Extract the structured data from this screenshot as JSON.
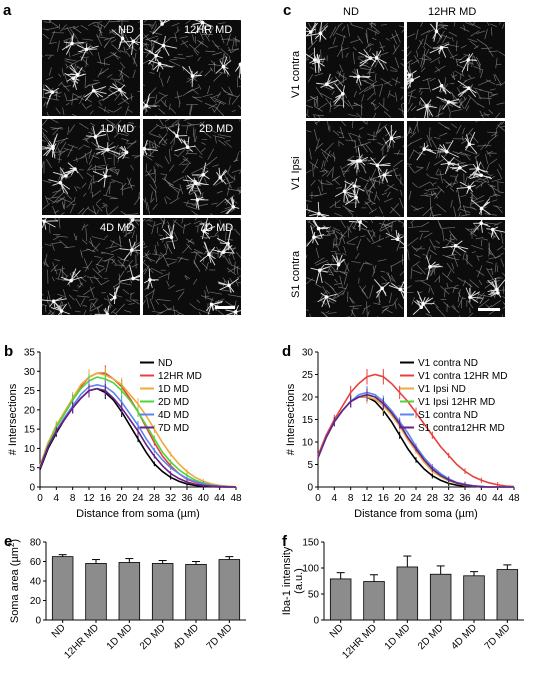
{
  "panel_a": {
    "letter": "a",
    "labels": [
      "ND",
      "12HR MD",
      "1D MD",
      "2D MD",
      "4D MD",
      "7D MD"
    ]
  },
  "panel_c": {
    "letter": "c",
    "col_labels": [
      "ND",
      "12HR MD"
    ],
    "row_labels": [
      "V1 contra",
      "V1 Ipsi",
      "S1 contra"
    ]
  },
  "chart_data": [
    {
      "id": "b",
      "letter": "b",
      "type": "line",
      "xlabel": "Distance from soma (µm)",
      "ylabel": "# Intersections",
      "xlim": [
        0,
        48
      ],
      "ylim": [
        0,
        35
      ],
      "xticks": [
        0,
        4,
        8,
        12,
        16,
        20,
        24,
        28,
        32,
        36,
        40,
        44,
        48
      ],
      "yticks": [
        0,
        5,
        10,
        15,
        20,
        25,
        30,
        35
      ],
      "legend_position": "right",
      "x": [
        0,
        2,
        4,
        6,
        8,
        10,
        12,
        14,
        16,
        18,
        20,
        22,
        24,
        26,
        28,
        30,
        32,
        34,
        36,
        38,
        40,
        42,
        44,
        46,
        48
      ],
      "series": [
        {
          "name": "ND",
          "color": "#000000",
          "values": [
            4.5,
            10,
            14,
            17.5,
            20.5,
            23,
            25,
            25.5,
            24.5,
            22.5,
            19.5,
            16,
            12.5,
            9,
            6,
            4,
            2.5,
            1.5,
            0.8,
            0.4,
            0.2,
            0.1,
            0,
            0,
            0
          ]
        },
        {
          "name": "12HR MD",
          "color": "#e8413c",
          "values": [
            5.5,
            11.5,
            15.5,
            19,
            22.5,
            26,
            28.5,
            29.5,
            29.5,
            28,
            26,
            23,
            19.5,
            15.5,
            11.5,
            8,
            5.5,
            3.5,
            2,
            1.2,
            0.6,
            0.3,
            0.1,
            0,
            0
          ]
        },
        {
          "name": "1D MD",
          "color": "#f2a93b",
          "values": [
            5.5,
            11.5,
            16,
            19.5,
            23,
            26.5,
            28.5,
            29.5,
            29,
            28,
            26.5,
            24,
            21.5,
            18.5,
            15,
            11.5,
            8.5,
            6,
            4,
            2.5,
            1.5,
            0.8,
            0.4,
            0.2,
            0.1
          ]
        },
        {
          "name": "2D MD",
          "color": "#4cd63a",
          "values": [
            5,
            11,
            15.5,
            19,
            22.5,
            25.5,
            27.5,
            28.5,
            28,
            27,
            25,
            22.5,
            19.5,
            16,
            12.5,
            9,
            6.5,
            4.5,
            3,
            1.8,
            1,
            0.5,
            0.2,
            0.1,
            0
          ]
        },
        {
          "name": "4D MD",
          "color": "#5b86f0",
          "values": [
            5,
            10.5,
            14.5,
            18,
            21,
            24,
            26,
            26.5,
            26,
            24.5,
            22,
            19,
            16,
            12.5,
            9.5,
            7,
            5,
            3.5,
            2.2,
            1.4,
            0.8,
            0.4,
            0.2,
            0.1,
            0
          ]
        },
        {
          "name": "7D MD",
          "color": "#6a1f8c",
          "values": [
            5,
            10.5,
            14.5,
            17.5,
            20.5,
            23,
            25,
            25.5,
            25,
            23,
            20.5,
            17.5,
            14.5,
            11,
            8,
            5.5,
            3.5,
            2.2,
            1.3,
            0.7,
            0.4,
            0.2,
            0.1,
            0,
            0
          ]
        }
      ]
    },
    {
      "id": "d",
      "letter": "d",
      "type": "line",
      "xlabel": "Distance from soma (µm)",
      "ylabel": "# Intersections",
      "xlim": [
        0,
        48
      ],
      "ylim": [
        0,
        30
      ],
      "xticks": [
        0,
        4,
        8,
        12,
        16,
        20,
        24,
        28,
        32,
        36,
        40,
        44,
        48
      ],
      "yticks": [
        0,
        5,
        10,
        15,
        20,
        25,
        30
      ],
      "legend_position": "right",
      "x": [
        0,
        2,
        4,
        6,
        8,
        10,
        12,
        14,
        16,
        18,
        20,
        22,
        24,
        26,
        28,
        30,
        32,
        34,
        36,
        38,
        40,
        42,
        44,
        46,
        48
      ],
      "series": [
        {
          "name": "V1 contra ND",
          "color": "#000000",
          "values": [
            7,
            11,
            14.5,
            17,
            19,
            20,
            20,
            19,
            17,
            14.5,
            11.5,
            8.5,
            6,
            4,
            2.5,
            1.5,
            0.8,
            0.4,
            0.2,
            0.1,
            0,
            0,
            0,
            0,
            0
          ]
        },
        {
          "name": "V1 contra 12HR MD",
          "color": "#e8413c",
          "values": [
            7,
            11.5,
            15,
            18,
            21,
            23,
            24.5,
            25,
            24.5,
            23,
            21,
            19,
            16.5,
            14,
            11.5,
            9,
            7,
            5,
            3.5,
            2.3,
            1.5,
            0.9,
            0.5,
            0.2,
            0.1
          ]
        },
        {
          "name": "V1 Ipsi ND",
          "color": "#f2a93b",
          "values": [
            6.5,
            11,
            14.5,
            17,
            19,
            20,
            20,
            19.5,
            18,
            16,
            13.5,
            10.5,
            8,
            5.5,
            3.5,
            2.3,
            1.4,
            0.8,
            0.4,
            0.2,
            0.1,
            0,
            0,
            0,
            0
          ]
        },
        {
          "name": "V1 Ipsi 12HR MD",
          "color": "#4cd63a",
          "values": [
            6.5,
            11,
            14.5,
            17,
            19,
            20,
            20.5,
            20,
            18.5,
            16.5,
            14,
            11,
            8.5,
            6,
            4,
            2.5,
            1.5,
            0.9,
            0.5,
            0.2,
            0.1,
            0,
            0,
            0,
            0
          ]
        },
        {
          "name": "S1 contra ND",
          "color": "#5b86f0",
          "values": [
            6.5,
            11,
            14.5,
            17,
            19,
            20.5,
            21,
            20.5,
            19,
            17,
            14.5,
            12,
            9,
            6.5,
            4.5,
            3,
            1.8,
            1,
            0.6,
            0.3,
            0.1,
            0,
            0,
            0,
            0
          ]
        },
        {
          "name": "S1 contra12HR MD",
          "color": "#6a1f8c",
          "values": [
            6.5,
            11,
            14.5,
            17,
            19,
            20,
            20.5,
            20,
            18.5,
            16.5,
            14,
            11,
            8.5,
            6,
            4,
            2.6,
            1.6,
            0.9,
            0.5,
            0.2,
            0.1,
            0,
            0,
            0,
            0
          ]
        }
      ]
    },
    {
      "id": "e",
      "letter": "e",
      "type": "bar",
      "ylabel_pre": "Soma area (µm",
      "ylabel_sup": "2",
      "ylabel_post": ")",
      "categories": [
        "ND",
        "12HR MD",
        "1D MD",
        "2D MD",
        "4D MD",
        "7D MD"
      ],
      "values": [
        65,
        58,
        59,
        58,
        57,
        62
      ],
      "errors": [
        2,
        4,
        4,
        3,
        3,
        3
      ],
      "ylim": [
        0,
        80
      ],
      "yticks": [
        0,
        20,
        40,
        60,
        80
      ],
      "bar_color": "#8c8c8c"
    },
    {
      "id": "f",
      "letter": "f",
      "type": "bar",
      "ylabel_line1": "Iba-1 intensity",
      "ylabel_line2": "(a.u.)",
      "categories": [
        "ND",
        "12HR MD",
        "1D MD",
        "2D MD",
        "4D MD",
        "7D MD"
      ],
      "values": [
        79,
        74,
        102,
        88,
        85,
        97
      ],
      "errors": [
        12,
        13,
        21,
        16,
        8,
        9
      ],
      "ylim": [
        0,
        150
      ],
      "yticks": [
        0,
        50,
        100,
        150
      ],
      "bar_color": "#8c8c8c"
    }
  ]
}
